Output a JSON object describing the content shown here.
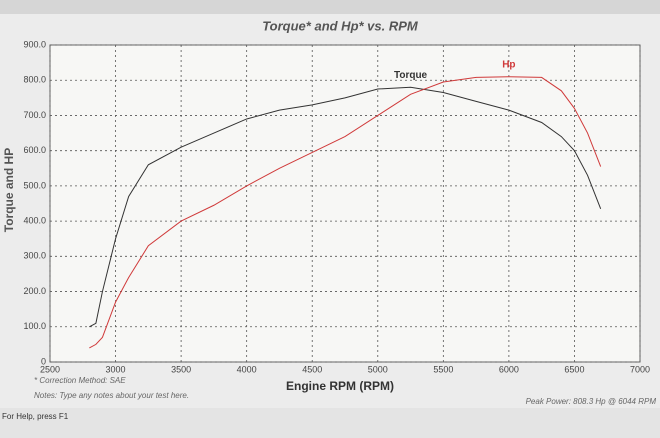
{
  "chart_data": {
    "type": "line",
    "title": "Torque* and Hp* vs. RPM",
    "x_label": "Engine RPM (RPM)",
    "y_label": "Torque and HP",
    "x": [
      2800,
      2850,
      2900,
      3000,
      3100,
      3250,
      3500,
      3750,
      4000,
      4250,
      4500,
      4750,
      5000,
      5250,
      5500,
      5750,
      6000,
      6250,
      6400,
      6500,
      6600,
      6700
    ],
    "series": [
      {
        "name": "Torque",
        "color": "#333333",
        "values": [
          100,
          110,
          200,
          350,
          470,
          560,
          610,
          650,
          690,
          715,
          730,
          750,
          775,
          780,
          765,
          740,
          715,
          680,
          640,
          600,
          530,
          435
        ]
      },
      {
        "name": "Hp",
        "color": "#d03a3a",
        "values": [
          40,
          50,
          70,
          170,
          240,
          330,
          400,
          445,
          500,
          550,
          595,
          640,
          700,
          760,
          795,
          808,
          810,
          808,
          770,
          720,
          650,
          555
        ]
      }
    ],
    "xlim": [
      2500,
      7000
    ],
    "xticks": [
      2500,
      3000,
      3500,
      4000,
      4500,
      5000,
      5500,
      6000,
      6500,
      7000
    ],
    "ylim": [
      0,
      900
    ],
    "yticks": [
      0,
      {
        "value": 100,
        "label": "100.0"
      },
      {
        "value": 200,
        "label": "200.0"
      },
      {
        "value": 300,
        "label": "300.0"
      },
      {
        "value": 400,
        "label": "400.0"
      },
      {
        "value": 500,
        "label": "500.0"
      },
      {
        "value": 600,
        "label": "600.0"
      },
      {
        "value": 700,
        "label": "700.0"
      },
      {
        "value": 800,
        "label": "800.0"
      },
      {
        "value": 900,
        "label": "900.0"
      }
    ],
    "grid": true,
    "annotations": [
      "* Correction Method: SAE",
      "Notes: Type any notes about your test here.",
      "Peak Power: 808.3 Hp @ 6044 RPM"
    ]
  },
  "status_bar": "For Help, press F1"
}
